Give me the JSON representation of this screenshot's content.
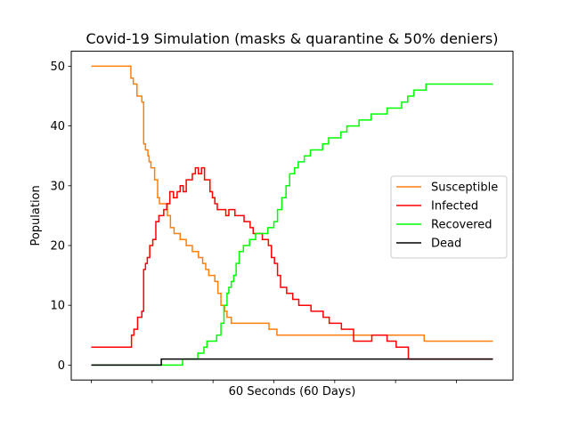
{
  "chart_data": {
    "type": "line",
    "title": "Covid-19 Simulation (masks & quarantine & 50% deniers)",
    "xlabel": "60 Seconds (60 Days)",
    "ylabel": "Population",
    "xlim": [
      -3.3,
      69.3
    ],
    "ylim": [
      -2.5,
      52.5
    ],
    "yticks": [
      0,
      10,
      20,
      30,
      40,
      50
    ],
    "xticks": [
      0,
      10,
      20,
      30,
      40,
      50,
      60
    ],
    "legend_position": "center-right",
    "grid": false,
    "series": [
      {
        "name": "Susceptible",
        "color": "#ff7f0e",
        "x": [
          0,
          6.3,
          6.5,
          6.9,
          7.5,
          7.9,
          8.3,
          8.6,
          8.9,
          9.3,
          9.5,
          9.8,
          10.1,
          10.4,
          10.9,
          11.2,
          11.7,
          12.0,
          12.5,
          13.0,
          13.6,
          14.6,
          15.0,
          15.6,
          16.6,
          17.6,
          18.3,
          18.8,
          19.3,
          19.8,
          20.3,
          20.8,
          21.3,
          21.9,
          22.3,
          22.6,
          23.0,
          23.4,
          23.8,
          24.4,
          25.4,
          29.2,
          29.8,
          30.5,
          54.7,
          66.0
        ],
        "y": [
          50,
          50,
          48,
          47,
          45,
          45,
          44,
          37,
          36,
          35,
          34,
          33,
          33,
          31,
          28,
          27,
          27,
          27,
          25,
          23,
          22,
          21,
          21,
          20,
          19,
          18,
          17,
          16,
          15,
          15,
          14,
          12,
          10,
          9,
          8,
          8,
          7,
          7,
          7,
          7,
          7,
          6,
          6,
          5,
          4,
          4
        ]
      },
      {
        "name": "Infected",
        "color": "#ff0000",
        "x": [
          0,
          6.3,
          6.6,
          7.0,
          7.6,
          8.3,
          8.6,
          8.9,
          9.2,
          9.6,
          10.1,
          10.6,
          11.1,
          11.4,
          11.9,
          12.4,
          12.9,
          13.5,
          14.1,
          14.6,
          15.1,
          15.6,
          16.1,
          16.6,
          17.1,
          17.6,
          18.1,
          18.6,
          19.1,
          19.5,
          19.9,
          20.3,
          20.7,
          21.1,
          21.6,
          22.1,
          22.6,
          23.1,
          23.6,
          24.1,
          25.1,
          25.6,
          26.1,
          26.6,
          27.1,
          28.1,
          29.1,
          29.6,
          30.1,
          30.6,
          31.1,
          32.1,
          33.1,
          33.6,
          34.1,
          34.6,
          35.1,
          36.1,
          37.1,
          38.1,
          39.1,
          40.1,
          41.1,
          42.1,
          43.1,
          44.6,
          46.1,
          47.1,
          48.1,
          48.6,
          49.1,
          50.1,
          51.1,
          52.1,
          53.1,
          55.1,
          66.0
        ],
        "y": [
          3,
          3,
          5,
          6,
          8,
          9,
          16,
          17,
          18,
          20,
          21,
          24,
          25,
          25,
          26,
          27,
          29,
          28,
          29,
          30,
          29,
          31,
          31,
          32,
          33,
          32,
          33,
          31,
          31,
          29,
          28,
          27,
          26,
          26,
          26,
          25,
          26,
          26,
          25,
          25,
          24,
          24,
          23,
          22,
          22,
          21,
          20,
          18,
          17,
          15,
          13,
          12,
          11,
          11,
          10,
          10,
          10,
          9,
          9,
          8,
          7,
          7,
          6,
          6,
          4,
          4,
          5,
          5,
          5,
          4,
          4,
          3,
          3,
          1,
          1,
          1,
          1
        ]
      },
      {
        "name": "Recovered",
        "color": "#00ff00",
        "x": [
          0,
          14.8,
          15.0,
          17.5,
          18.0,
          18.5,
          19.0,
          19.6,
          20.6,
          21.0,
          21.3,
          21.8,
          22.3,
          22.6,
          23.0,
          23.4,
          23.8,
          24.3,
          25.0,
          26.0,
          27.0,
          28.0,
          29.0,
          30.0,
          30.6,
          31.3,
          32.0,
          32.6,
          33.4,
          34.0,
          35.0,
          36.0,
          37.0,
          38.0,
          39.0,
          40.0,
          41.0,
          42.0,
          43.0,
          44.0,
          46.0,
          47.0,
          48.0,
          48.6,
          49.5,
          50.0,
          51.0,
          52.0,
          53.0,
          55.0,
          66.0
        ],
        "y": [
          0,
          0,
          1,
          2,
          2,
          3,
          4,
          4,
          5,
          5,
          7,
          10,
          12,
          13,
          14,
          15,
          17,
          19,
          20,
          21,
          22,
          22,
          23,
          24,
          26,
          28,
          30,
          32,
          33,
          34,
          35,
          36,
          36,
          37,
          38,
          38,
          39,
          40,
          40,
          41,
          42,
          42,
          42,
          43,
          43,
          43,
          44,
          45,
          46,
          47,
          47
        ]
      },
      {
        "name": "Dead",
        "color": "#000000",
        "x": [
          0,
          11.4,
          11.5,
          66.0
        ],
        "y": [
          0,
          0,
          1,
          1
        ]
      }
    ]
  }
}
